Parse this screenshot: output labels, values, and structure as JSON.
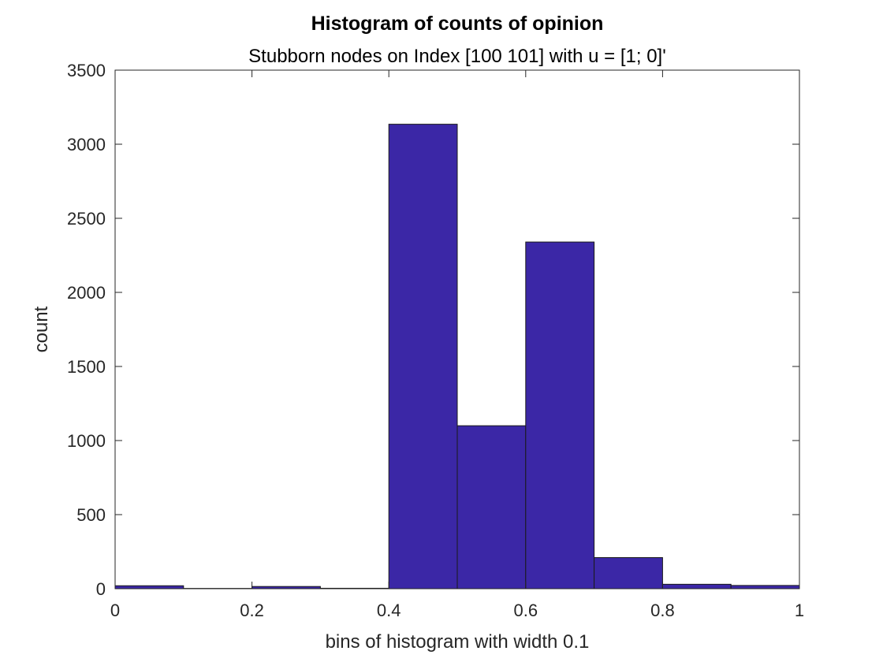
{
  "chart_data": {
    "type": "bar",
    "title": "Histogram of counts of opinion",
    "subtitle": "Stubborn nodes on Index [100 101] with u = [1; 0]'",
    "xlabel": "bins of histogram with width 0.1",
    "ylabel": "count",
    "xlim": [
      0,
      1
    ],
    "ylim": [
      0,
      3500
    ],
    "xticks": [
      "0",
      "0.2",
      "0.4",
      "0.6",
      "0.8",
      "1"
    ],
    "yticks": [
      "0",
      "500",
      "1000",
      "1500",
      "2000",
      "2500",
      "3000",
      "3500"
    ],
    "bin_width": 0.1,
    "bins": [
      {
        "start": 0.0,
        "end": 0.1,
        "value": 20
      },
      {
        "start": 0.1,
        "end": 0.2,
        "value": 2
      },
      {
        "start": 0.2,
        "end": 0.3,
        "value": 15
      },
      {
        "start": 0.3,
        "end": 0.4,
        "value": 3
      },
      {
        "start": 0.4,
        "end": 0.5,
        "value": 3135
      },
      {
        "start": 0.5,
        "end": 0.6,
        "value": 1100
      },
      {
        "start": 0.6,
        "end": 0.7,
        "value": 2340
      },
      {
        "start": 0.7,
        "end": 0.8,
        "value": 210
      },
      {
        "start": 0.8,
        "end": 0.9,
        "value": 30
      },
      {
        "start": 0.9,
        "end": 1.0,
        "value": 22
      }
    ],
    "bar_color": "#3b27a6",
    "grid": false,
    "legend": "none"
  }
}
